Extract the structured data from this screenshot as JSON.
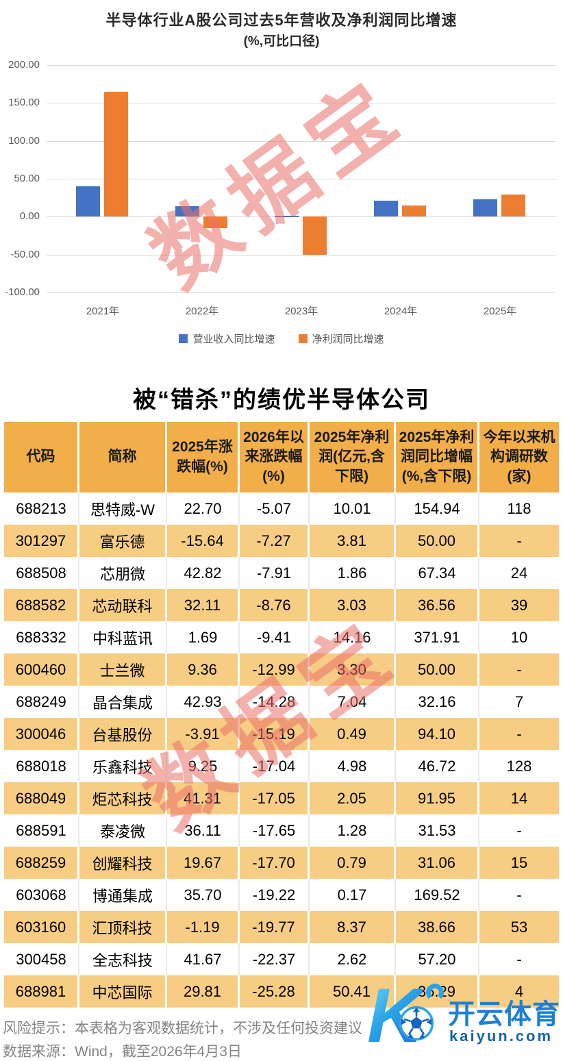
{
  "chart_data": [
    {
      "type": "bar",
      "title": "半导体行业A股公司过去5年营收及净利润同比增速",
      "subtitle": "(%,可比口径)",
      "categories": [
        "2021年",
        "2022年",
        "2023年",
        "2024年",
        "2025年"
      ],
      "series": [
        {
          "name": "营业收入同比增速",
          "color": "#4472C4",
          "values": [
            40,
            14,
            1,
            21,
            23
          ]
        },
        {
          "name": "净利润同比增速",
          "color": "#ED7D31",
          "values": [
            165,
            -15,
            -50,
            15,
            29
          ]
        }
      ],
      "ylim": [
        -100,
        200
      ],
      "yticks": [
        200,
        150,
        100,
        50,
        0,
        -50,
        -100
      ],
      "grid": true,
      "legend_position": "bottom"
    },
    {
      "type": "table",
      "title": "被“错杀”的绩优半导体公司",
      "columns": [
        "代码",
        "简称",
        "2025年涨跌幅(%)",
        "2026年以来涨跌幅(%)",
        "2025年净利润(亿元,含下限)",
        "2025年净利润同比增幅(%,含下限)",
        "今年以来机构调研数(家)"
      ],
      "rows": [
        [
          "688213",
          "思特威-W",
          "22.70",
          "-5.07",
          "10.01",
          "154.94",
          "118"
        ],
        [
          "301297",
          "富乐德",
          "-15.64",
          "-7.27",
          "3.81",
          "50.00",
          "-"
        ],
        [
          "688508",
          "芯朋微",
          "42.82",
          "-7.91",
          "1.86",
          "67.34",
          "24"
        ],
        [
          "688582",
          "芯动联科",
          "32.11",
          "-8.76",
          "3.03",
          "36.56",
          "39"
        ],
        [
          "688332",
          "中科蓝讯",
          "1.69",
          "-9.41",
          "14.16",
          "371.91",
          "10"
        ],
        [
          "600460",
          "士兰微",
          "9.36",
          "-12.99",
          "3.30",
          "50.00",
          "-"
        ],
        [
          "688249",
          "晶合集成",
          "42.93",
          "-14.28",
          "7.04",
          "32.16",
          "7"
        ],
        [
          "300046",
          "台基股份",
          "-3.91",
          "-15.19",
          "0.49",
          "94.10",
          "-"
        ],
        [
          "688018",
          "乐鑫科技",
          "9.25",
          "-17.04",
          "4.98",
          "46.72",
          "128"
        ],
        [
          "688049",
          "炬芯科技",
          "41.31",
          "-17.05",
          "2.05",
          "91.95",
          "14"
        ],
        [
          "688591",
          "泰凌微",
          "36.11",
          "-17.65",
          "1.28",
          "31.53",
          "-"
        ],
        [
          "688259",
          "创耀科技",
          "19.67",
          "-17.70",
          "0.79",
          "31.06",
          "15"
        ],
        [
          "603068",
          "博通集成",
          "35.70",
          "-19.22",
          "0.17",
          "169.52",
          "-"
        ],
        [
          "603160",
          "汇顶科技",
          "-1.19",
          "-19.77",
          "8.37",
          "38.66",
          "53"
        ],
        [
          "300458",
          "全志科技",
          "41.67",
          "-22.37",
          "2.62",
          "57.20",
          "-"
        ],
        [
          "688981",
          "中芯国际",
          "29.81",
          "-25.28",
          "50.41",
          "36.29",
          "4"
        ]
      ]
    }
  ],
  "watermark": {
    "text": "数据宝"
  },
  "footer": {
    "line1": "风险提示：本表格为客观数据统计，不涉及任何投资建议",
    "line2": "数据来源：Wind，截至2026年4月3日"
  },
  "logo": {
    "k": "K",
    "brand": "开云体育",
    "domain": "kaiyun.com"
  },
  "colors": {
    "revenue_bar": "#4472C4",
    "profit_bar": "#ED7D31",
    "table_header_bg": "#F2AE49",
    "table_alt_row_bg": "#F7CD84",
    "watermark": "rgba(233,113,106,0.55)",
    "footer_text": "#848484",
    "logo_blue": "#1D7FD6"
  }
}
